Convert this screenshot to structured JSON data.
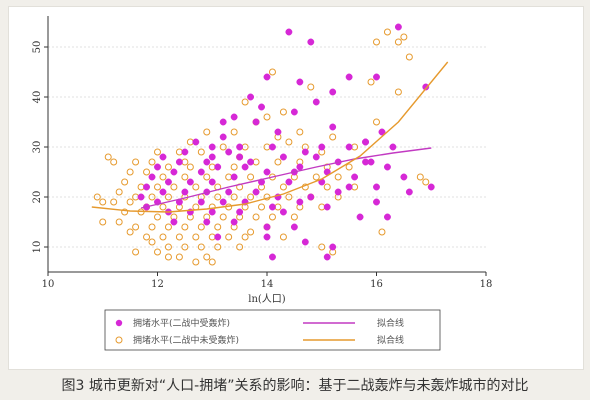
{
  "caption": "图3 城市更新对“人口-拥堵”关系的影响：基于二战轰炸与未轰炸城市的对比",
  "chart_data": {
    "type": "scatter",
    "xlabel": "ln(人口)",
    "ylabel": "",
    "xlim": [
      10,
      18
    ],
    "ylim": [
      5,
      55
    ],
    "xticks": [
      10,
      12,
      14,
      16,
      18
    ],
    "yticks": [
      10,
      20,
      30,
      40,
      50
    ],
    "grid": true,
    "legend_position": "bottom",
    "legend": [
      {
        "label": "拥堵水平(二战中受轰炸)",
        "kind": "filled-circle",
        "color": "#d628d6"
      },
      {
        "label": "拟合线",
        "kind": "line",
        "color": "#c23ac2"
      },
      {
        "label": "拥堵水平(二战中未受轰炸)",
        "kind": "hollow-circle",
        "color": "#e69a2e"
      },
      {
        "label": "拟合线",
        "kind": "line",
        "color": "#e69a2e"
      }
    ],
    "series": [
      {
        "name": "拥堵水平(二战中受轰炸)",
        "color": "#d628d6",
        "marker": "filled",
        "points": [
          [
            14.4,
            53
          ],
          [
            14.8,
            51
          ],
          [
            16.4,
            54
          ],
          [
            15.5,
            44
          ],
          [
            16.0,
            44
          ],
          [
            15.2,
            41
          ],
          [
            14.6,
            43
          ],
          [
            14.0,
            44
          ],
          [
            14.9,
            39
          ],
          [
            13.7,
            40
          ],
          [
            13.9,
            38
          ],
          [
            14.5,
            37
          ],
          [
            16.9,
            42
          ],
          [
            13.4,
            36
          ],
          [
            13.2,
            35
          ],
          [
            13.8,
            35
          ],
          [
            14.2,
            33
          ],
          [
            15.2,
            34
          ],
          [
            16.1,
            33
          ],
          [
            15.8,
            31
          ],
          [
            12.7,
            31
          ],
          [
            13.2,
            32
          ],
          [
            13.0,
            30
          ],
          [
            13.5,
            30
          ],
          [
            14.1,
            30
          ],
          [
            14.7,
            29
          ],
          [
            15.0,
            30
          ],
          [
            15.5,
            30
          ],
          [
            16.3,
            30
          ],
          [
            12.1,
            28
          ],
          [
            12.5,
            29
          ],
          [
            13.0,
            28
          ],
          [
            13.5,
            28
          ],
          [
            14.3,
            28
          ],
          [
            14.9,
            28
          ],
          [
            15.3,
            27
          ],
          [
            15.8,
            27
          ],
          [
            16.2,
            26
          ],
          [
            12.0,
            26
          ],
          [
            12.3,
            25
          ],
          [
            12.8,
            25
          ],
          [
            13.1,
            26
          ],
          [
            13.6,
            26
          ],
          [
            14.0,
            25
          ],
          [
            14.6,
            26
          ],
          [
            15.1,
            25
          ],
          [
            15.6,
            24
          ],
          [
            16.5,
            24
          ],
          [
            11.9,
            24
          ],
          [
            12.2,
            23
          ],
          [
            12.6,
            23
          ],
          [
            13.0,
            23
          ],
          [
            13.4,
            24
          ],
          [
            13.9,
            23
          ],
          [
            14.4,
            23
          ],
          [
            15.0,
            23
          ],
          [
            15.5,
            22
          ],
          [
            16.0,
            22
          ],
          [
            17.0,
            22
          ],
          [
            11.8,
            22
          ],
          [
            12.1,
            21
          ],
          [
            12.5,
            21
          ],
          [
            12.9,
            21
          ],
          [
            13.3,
            21
          ],
          [
            13.8,
            21
          ],
          [
            14.2,
            20
          ],
          [
            14.8,
            20
          ],
          [
            15.3,
            21
          ],
          [
            16.6,
            21
          ],
          [
            11.7,
            20
          ],
          [
            12.0,
            19
          ],
          [
            12.4,
            19
          ],
          [
            12.8,
            19
          ],
          [
            13.2,
            19
          ],
          [
            13.6,
            19
          ],
          [
            14.1,
            18
          ],
          [
            14.6,
            19
          ],
          [
            15.1,
            18
          ],
          [
            16.0,
            19
          ],
          [
            11.8,
            18
          ],
          [
            12.2,
            17
          ],
          [
            12.6,
            17
          ],
          [
            13.0,
            17
          ],
          [
            13.5,
            17
          ],
          [
            14.3,
            17
          ],
          [
            15.7,
            16
          ],
          [
            16.2,
            16
          ],
          [
            12.3,
            15
          ],
          [
            12.9,
            15
          ],
          [
            13.4,
            15
          ],
          [
            14.0,
            14
          ],
          [
            14.5,
            14
          ],
          [
            14.0,
            12
          ],
          [
            13.1,
            12
          ],
          [
            14.7,
            11
          ],
          [
            15.2,
            10
          ],
          [
            14.1,
            8
          ],
          [
            15.1,
            8
          ],
          [
            15.8,
            31
          ],
          [
            12.9,
            27
          ],
          [
            13.7,
            27
          ],
          [
            14.5,
            25
          ],
          [
            12.4,
            27
          ],
          [
            13.3,
            29
          ],
          [
            15.9,
            27
          ]
        ]
      },
      {
        "name": "拥堵水平(二战中未受轰炸)",
        "color": "#e69a2e",
        "marker": "hollow",
        "points": [
          [
            16.2,
            53
          ],
          [
            16.5,
            52
          ],
          [
            16.4,
            51
          ],
          [
            16.0,
            51
          ],
          [
            16.6,
            48
          ],
          [
            15.9,
            43
          ],
          [
            16.4,
            41
          ],
          [
            14.1,
            45
          ],
          [
            14.8,
            42
          ],
          [
            13.6,
            39
          ],
          [
            14.3,
            37
          ],
          [
            14.0,
            36
          ],
          [
            13.8,
            35
          ],
          [
            16.0,
            35
          ],
          [
            15.2,
            32
          ],
          [
            14.2,
            32
          ],
          [
            13.4,
            33
          ],
          [
            12.9,
            33
          ],
          [
            12.6,
            31
          ],
          [
            15.6,
            30
          ],
          [
            15.0,
            29
          ],
          [
            14.7,
            30
          ],
          [
            14.4,
            31
          ],
          [
            14.0,
            30
          ],
          [
            13.6,
            30
          ],
          [
            13.2,
            30
          ],
          [
            12.8,
            29
          ],
          [
            12.4,
            29
          ],
          [
            12.0,
            29
          ],
          [
            11.1,
            28
          ],
          [
            11.2,
            27
          ],
          [
            11.6,
            27
          ],
          [
            11.9,
            27
          ],
          [
            12.2,
            26
          ],
          [
            12.6,
            26
          ],
          [
            13.0,
            26
          ],
          [
            13.4,
            26
          ],
          [
            13.8,
            27
          ],
          [
            14.2,
            27
          ],
          [
            14.6,
            27
          ],
          [
            15.1,
            26
          ],
          [
            15.5,
            26
          ],
          [
            11.5,
            25
          ],
          [
            11.8,
            25
          ],
          [
            12.1,
            24
          ],
          [
            12.5,
            24
          ],
          [
            12.9,
            24
          ],
          [
            13.3,
            24
          ],
          [
            13.7,
            24
          ],
          [
            14.1,
            24
          ],
          [
            14.5,
            24
          ],
          [
            14.9,
            24
          ],
          [
            15.3,
            24
          ],
          [
            11.4,
            23
          ],
          [
            11.7,
            22
          ],
          [
            12.0,
            22
          ],
          [
            12.3,
            22
          ],
          [
            12.7,
            22
          ],
          [
            13.1,
            22
          ],
          [
            13.5,
            22
          ],
          [
            13.9,
            22
          ],
          [
            14.3,
            22
          ],
          [
            14.7,
            22
          ],
          [
            15.1,
            22
          ],
          [
            15.6,
            22
          ],
          [
            11.3,
            21
          ],
          [
            11.6,
            20
          ],
          [
            11.9,
            20
          ],
          [
            12.2,
            20
          ],
          [
            12.5,
            20
          ],
          [
            12.8,
            20
          ],
          [
            13.1,
            20
          ],
          [
            13.4,
            20
          ],
          [
            13.7,
            20
          ],
          [
            14.0,
            20
          ],
          [
            14.4,
            20
          ],
          [
            14.8,
            20
          ],
          [
            15.3,
            20
          ],
          [
            10.9,
            20
          ],
          [
            11.2,
            19
          ],
          [
            11.5,
            19
          ],
          [
            11.8,
            18
          ],
          [
            12.1,
            18
          ],
          [
            12.4,
            18
          ],
          [
            12.7,
            18
          ],
          [
            13.0,
            18
          ],
          [
            13.3,
            18
          ],
          [
            13.6,
            18
          ],
          [
            13.9,
            18
          ],
          [
            14.2,
            18
          ],
          [
            14.6,
            18
          ],
          [
            15.0,
            18
          ],
          [
            11.4,
            17
          ],
          [
            11.7,
            17
          ],
          [
            12.0,
            16
          ],
          [
            12.3,
            16
          ],
          [
            12.6,
            16
          ],
          [
            12.9,
            16
          ],
          [
            13.2,
            16
          ],
          [
            13.5,
            16
          ],
          [
            13.8,
            16
          ],
          [
            14.1,
            16
          ],
          [
            14.5,
            16
          ],
          [
            11.0,
            15
          ],
          [
            11.3,
            15
          ],
          [
            11.6,
            14
          ],
          [
            11.9,
            14
          ],
          [
            12.2,
            14
          ],
          [
            12.5,
            14
          ],
          [
            12.8,
            14
          ],
          [
            13.1,
            14
          ],
          [
            13.4,
            14
          ],
          [
            13.7,
            13
          ],
          [
            14.0,
            14
          ],
          [
            11.5,
            13
          ],
          [
            11.8,
            12
          ],
          [
            12.1,
            12
          ],
          [
            12.4,
            12
          ],
          [
            12.7,
            12
          ],
          [
            13.0,
            12
          ],
          [
            13.3,
            12
          ],
          [
            13.6,
            12
          ],
          [
            14.3,
            12
          ],
          [
            11.9,
            11
          ],
          [
            12.2,
            10
          ],
          [
            12.5,
            10
          ],
          [
            12.8,
            10
          ],
          [
            13.1,
            10
          ],
          [
            13.5,
            10
          ],
          [
            15.0,
            10
          ],
          [
            11.6,
            9
          ],
          [
            12.0,
            9
          ],
          [
            12.4,
            8
          ],
          [
            12.9,
            8
          ],
          [
            15.2,
            9
          ],
          [
            12.7,
            7
          ],
          [
            13.0,
            7
          ],
          [
            12.2,
            8
          ],
          [
            11.0,
            19
          ],
          [
            12.5,
            27
          ],
          [
            13.5,
            28
          ],
          [
            16.8,
            24
          ],
          [
            16.9,
            23
          ],
          [
            16.1,
            13
          ],
          [
            14.6,
            33
          ]
        ]
      }
    ],
    "fit_lines": [
      {
        "name": "拟合线",
        "color": "#c23ac2",
        "points": [
          [
            11.7,
            17.8
          ],
          [
            12.5,
            19.8
          ],
          [
            13.3,
            22.0
          ],
          [
            14.1,
            24.0
          ],
          [
            14.9,
            26.0
          ],
          [
            15.6,
            27.6
          ],
          [
            16.3,
            28.8
          ],
          [
            17.0,
            29.8
          ]
        ]
      },
      {
        "name": "拟合线",
        "color": "#e69a2e",
        "points": [
          [
            10.8,
            18.0
          ],
          [
            11.5,
            17.2
          ],
          [
            12.2,
            17.0
          ],
          [
            12.9,
            17.6
          ],
          [
            13.6,
            18.6
          ],
          [
            14.3,
            20.6
          ],
          [
            15.0,
            23.6
          ],
          [
            15.7,
            28.2
          ],
          [
            16.4,
            35.0
          ],
          [
            17.3,
            47.0
          ]
        ]
      }
    ]
  }
}
